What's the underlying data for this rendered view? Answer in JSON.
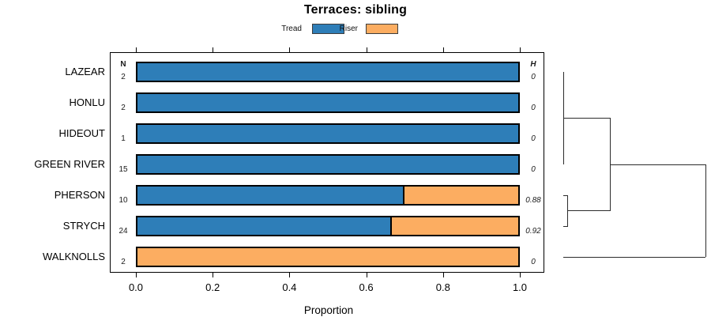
{
  "chart_data": {
    "type": "bar",
    "orientation": "horizontal",
    "stacked": true,
    "title": "Terraces: sibling",
    "xlabel": "Proportion",
    "xlim": [
      0,
      1
    ],
    "x_ticks": [
      "0.0",
      "0.2",
      "0.4",
      "0.6",
      "0.8",
      "1.0"
    ],
    "x_tick_values": [
      0,
      0.2,
      0.4,
      0.6,
      0.8,
      1.0
    ],
    "grid": false,
    "legend_position": "top",
    "legend": [
      {
        "label": "Tread",
        "color": "#2E7EB8"
      },
      {
        "label": "Riser",
        "color": "#FCAD61"
      }
    ],
    "left_annotation_header": "N",
    "right_annotation_header": "H",
    "categories": [
      "LAZEAR",
      "HONLU",
      "HIDEOUT",
      "GREEN RIVER",
      "PHERSON",
      "STRYCH",
      "WALKNOLLS"
    ],
    "rows": [
      {
        "label": "LAZEAR",
        "n": "2",
        "tread": 1.0,
        "riser": 0.0,
        "h": "0"
      },
      {
        "label": "HONLU",
        "n": "2",
        "tread": 1.0,
        "riser": 0.0,
        "h": "0"
      },
      {
        "label": "HIDEOUT",
        "n": "1",
        "tread": 1.0,
        "riser": 0.0,
        "h": "0"
      },
      {
        "label": "GREEN RIVER",
        "n": "15",
        "tread": 1.0,
        "riser": 0.0,
        "h": "0"
      },
      {
        "label": "PHERSON",
        "n": "10",
        "tread": 0.7,
        "riser": 0.3,
        "h": "0.88"
      },
      {
        "label": "STRYCH",
        "n": "24",
        "tread": 0.667,
        "riser": 0.333,
        "h": "0.92"
      },
      {
        "label": "WALKNOLLS",
        "n": "2",
        "tread": 0.0,
        "riser": 1.0,
        "h": "0"
      }
    ],
    "dendrogram": {
      "side": "right",
      "leaves": [
        "LAZEAR",
        "HONLU",
        "HIDEOUT",
        "GREEN RIVER",
        "PHERSON",
        "STRYCH",
        "WALKNOLLS"
      ],
      "merges": [
        {
          "children": [
            "L0",
            "L1"
          ],
          "height": 0
        },
        {
          "children": [
            "L2",
            "L3"
          ],
          "height": 0
        },
        {
          "children": [
            "M0",
            "M1"
          ],
          "height": 0.004
        },
        {
          "children": [
            "L4",
            "L5"
          ],
          "height": 0.031
        },
        {
          "children": [
            "M2",
            "M3"
          ],
          "height": 0.333
        },
        {
          "children": [
            "M4",
            "L6"
          ],
          "height": 1.0
        }
      ]
    },
    "colors": {
      "tread": "#2E7EB8",
      "riser": "#FCAD61",
      "bar_border": "#000000",
      "box_border": "#000000",
      "dendrogram_line": "#2b2b2b"
    }
  }
}
